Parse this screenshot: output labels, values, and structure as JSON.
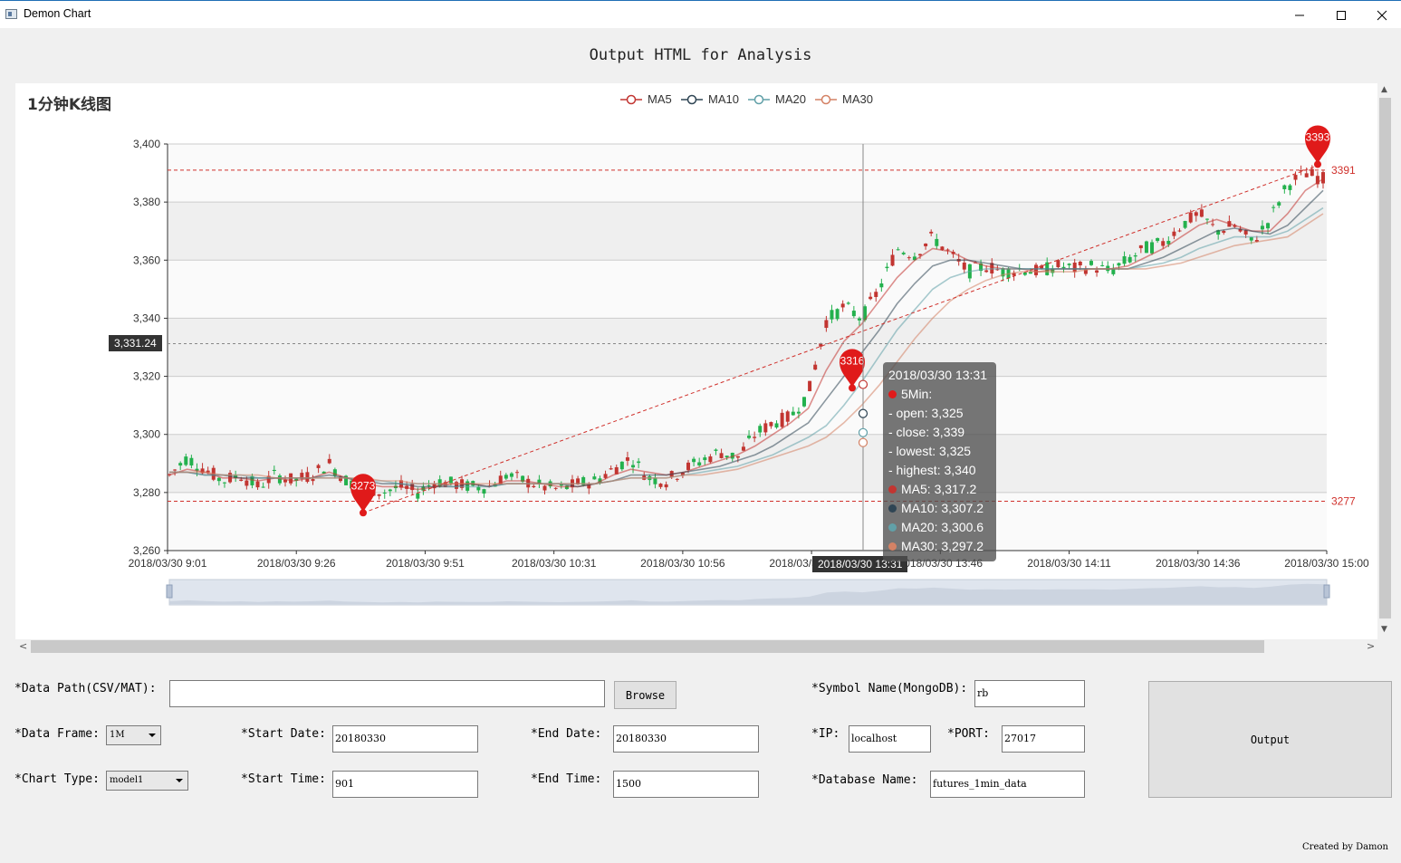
{
  "window": {
    "title": "Demon Chart",
    "controls": [
      "minimize",
      "maximize",
      "close"
    ]
  },
  "page": {
    "heading": "Output HTML for Analysis"
  },
  "chart": {
    "title": "1分钟K线图",
    "legend": [
      {
        "name": "MA5",
        "color": "#c23531"
      },
      {
        "name": "MA10",
        "color": "#2f4554"
      },
      {
        "name": "MA20",
        "color": "#61a0a8"
      },
      {
        "name": "MA30",
        "color": "#d48265"
      }
    ],
    "y_ticks": [
      "3,400",
      "3,380",
      "3,360",
      "3,340",
      "3,320",
      "3,300",
      "3,280",
      "3,260"
    ],
    "x_ticks": [
      "2018/03/30 9:01",
      "2018/03/30 9:26",
      "2018/03/30 9:51",
      "2018/03/30 10:31",
      "2018/03/30 10:56",
      "2018/03/30 13:21",
      "2018/03/30 13:46",
      "2018/03/30 14:11",
      "2018/03/30 14:36",
      "2018/03/30 15:00"
    ],
    "markline_max": "3391",
    "markline_min": "3277",
    "pin_low": "3273",
    "pin_mid": "3316",
    "pin_high": "3393",
    "cursor_y_value": "3,331.24",
    "cursor_x_value": "2018/03/30 13:31",
    "tooltip": {
      "header": "2018/03/30 13:31",
      "series_name": "5Min:",
      "open": "- open: 3,325",
      "close": "- close: 3,339",
      "lowest": "- lowest: 3,325",
      "highest": "- highest: 3,340",
      "ma5": "MA5: 3,317.2",
      "ma10": "MA10: 3,307.2",
      "ma20": "MA20: 3,300.6",
      "ma30": "MA30: 3,297.2"
    }
  },
  "chart_data": {
    "type": "candlestick",
    "title": "1分钟K线图",
    "ylim": [
      3260,
      3400
    ],
    "x_tick_labels": [
      "2018/03/30 9:01",
      "2018/03/30 9:26",
      "2018/03/30 9:51",
      "2018/03/30 10:31",
      "2018/03/30 10:56",
      "2018/03/30 13:21",
      "2018/03/30 13:46",
      "2018/03/30 14:11",
      "2018/03/30 14:36",
      "2018/03/30 15:00"
    ],
    "candle_colors": {
      "up": "#c23531",
      "down": "#23b14d"
    },
    "close_path": [
      3286,
      3292,
      3288,
      3284,
      3286,
      3282,
      3286,
      3284,
      3286,
      3290,
      3284,
      3282,
      3280,
      3282,
      3280,
      3284,
      3283,
      3282,
      3282,
      3286,
      3284,
      3282,
      3281,
      3283,
      3284,
      3288,
      3292,
      3285,
      3284,
      3288,
      3291,
      3294,
      3292,
      3300,
      3304,
      3306,
      3314,
      3339,
      3344,
      3340,
      3350,
      3364,
      3362,
      3368,
      3362,
      3356,
      3358,
      3356,
      3357,
      3356,
      3358,
      3357,
      3358,
      3356,
      3360,
      3364,
      3366,
      3372,
      3376,
      3370,
      3372,
      3366,
      3374,
      3386,
      3390,
      3388
    ],
    "markers": {
      "min": 3277,
      "max": 3391,
      "low_pin": 3273,
      "mid_pin": 3316,
      "high_pin": 3393
    },
    "series": [
      {
        "name": "MA5",
        "values": [
          3286,
          3288,
          3287,
          3285,
          3285,
          3284,
          3285,
          3284,
          3285,
          3287,
          3285,
          3283,
          3282,
          3282,
          3281,
          3282,
          3283,
          3283,
          3282,
          3284,
          3284,
          3283,
          3282,
          3282,
          3283,
          3286,
          3288,
          3287,
          3286,
          3287,
          3289,
          3291,
          3293,
          3296,
          3300,
          3304,
          3309,
          3322,
          3332,
          3338,
          3346,
          3354,
          3360,
          3364,
          3363,
          3360,
          3358,
          3357,
          3357,
          3356,
          3357,
          3357,
          3357,
          3357,
          3358,
          3361,
          3364,
          3368,
          3372,
          3374,
          3372,
          3370,
          3370,
          3376,
          3384,
          3388
        ]
      },
      {
        "name": "MA10",
        "values": [
          3287,
          3287,
          3286,
          3286,
          3285,
          3285,
          3285,
          3285,
          3285,
          3286,
          3285,
          3284,
          3283,
          3283,
          3282,
          3282,
          3282,
          3283,
          3282,
          3283,
          3283,
          3283,
          3283,
          3282,
          3283,
          3284,
          3286,
          3286,
          3286,
          3287,
          3288,
          3289,
          3291,
          3293,
          3296,
          3300,
          3304,
          3312,
          3320,
          3328,
          3336,
          3345,
          3352,
          3358,
          3360,
          3360,
          3359,
          3358,
          3357,
          3357,
          3357,
          3357,
          3357,
          3357,
          3357,
          3359,
          3361,
          3364,
          3367,
          3370,
          3371,
          3370,
          3369,
          3372,
          3378,
          3384
        ]
      },
      {
        "name": "MA20",
        "values": [
          3287,
          3287,
          3286,
          3286,
          3286,
          3285,
          3285,
          3285,
          3285,
          3285,
          3285,
          3284,
          3284,
          3283,
          3283,
          3283,
          3282,
          3282,
          3282,
          3283,
          3283,
          3283,
          3283,
          3283,
          3283,
          3284,
          3285,
          3285,
          3285,
          3286,
          3287,
          3288,
          3289,
          3291,
          3293,
          3296,
          3299,
          3303,
          3310,
          3318,
          3327,
          3336,
          3343,
          3350,
          3354,
          3356,
          3357,
          3357,
          3357,
          3357,
          3357,
          3357,
          3357,
          3357,
          3357,
          3358,
          3359,
          3361,
          3364,
          3366,
          3368,
          3368,
          3368,
          3370,
          3374,
          3378
        ]
      },
      {
        "name": "MA30",
        "values": [
          3287,
          3287,
          3287,
          3286,
          3286,
          3286,
          3285,
          3285,
          3285,
          3285,
          3285,
          3285,
          3284,
          3284,
          3283,
          3283,
          3283,
          3283,
          3283,
          3283,
          3283,
          3283,
          3283,
          3283,
          3283,
          3284,
          3285,
          3285,
          3285,
          3286,
          3286,
          3287,
          3288,
          3290,
          3292,
          3294,
          3296,
          3299,
          3304,
          3310,
          3317,
          3325,
          3333,
          3340,
          3346,
          3350,
          3353,
          3355,
          3356,
          3356,
          3356,
          3356,
          3357,
          3357,
          3357,
          3357,
          3358,
          3359,
          3361,
          3363,
          3365,
          3366,
          3367,
          3368,
          3372,
          3376
        ]
      }
    ]
  },
  "form": {
    "data_path_label": "*Data Path(CSV/MAT):",
    "data_path_value": "",
    "browse_button": "Browse",
    "symbol_label": "*Symbol Name(MongoDB):",
    "symbol_value": "rb",
    "data_frame_label": "*Data Frame:",
    "data_frame_value": "1M",
    "start_date_label": "*Start Date:",
    "start_date_value": "20180330",
    "end_date_label": "*End Date:",
    "end_date_value": "20180330",
    "ip_label": "*IP:",
    "ip_value": "localhost",
    "port_label": "*PORT:",
    "port_value": "27017",
    "chart_type_label": "*Chart Type:",
    "chart_type_value": "model1",
    "start_time_label": "*Start Time:",
    "start_time_value": "901",
    "end_time_label": "*End Time:",
    "end_time_value": "1500",
    "db_name_label": "*Database Name:",
    "db_name_value": "futures_1min_data",
    "output_button": "Output"
  },
  "credit": "Created by Damon"
}
